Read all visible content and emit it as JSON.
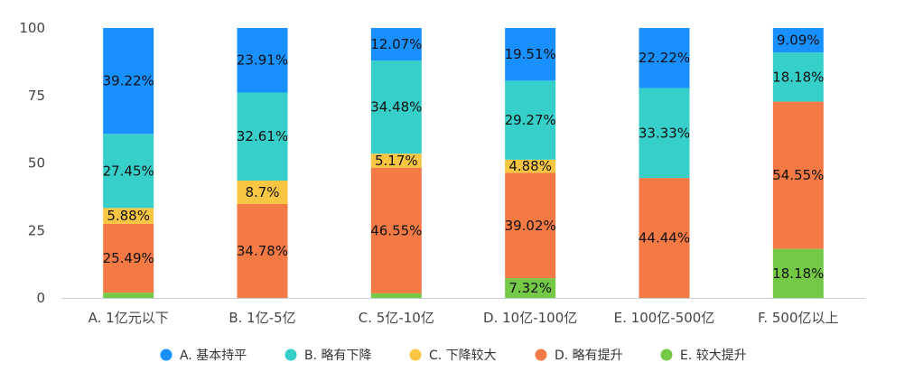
{
  "chart_data": {
    "type": "bar",
    "stacked": true,
    "orientation": "vertical",
    "categories": [
      "A. 1亿元以下",
      "B. 1亿-5亿",
      "C. 5亿-10亿",
      "D. 10亿-100亿",
      "E. 100亿-500亿",
      "F. 500亿以上"
    ],
    "series": [
      {
        "name": "E. 较大提升",
        "color": "#74C947",
        "values": [
          1.96,
          0,
          1.72,
          7.32,
          0,
          18.18
        ],
        "labels": [
          "1.96%",
          "",
          "1.72%",
          "7.32%",
          "",
          "18.18%"
        ]
      },
      {
        "name": "D. 略有提升",
        "color": "#F47A45",
        "values": [
          25.49,
          34.78,
          46.55,
          39.02,
          44.44,
          54.55
        ],
        "labels": [
          "25.49%",
          "34.78%",
          "46.55%",
          "39.02%",
          "44.44%",
          "54.55%"
        ]
      },
      {
        "name": "C. 下降较大",
        "color": "#F8C642",
        "values": [
          5.88,
          8.7,
          5.17,
          4.88,
          0,
          0
        ],
        "labels": [
          "5.88%",
          "8.7%",
          "5.17%",
          "4.88%",
          "",
          ""
        ]
      },
      {
        "name": "B. 略有下降",
        "color": "#36CFC9",
        "values": [
          27.45,
          32.61,
          34.48,
          29.27,
          33.33,
          18.18
        ],
        "labels": [
          "27.45%",
          "32.61%",
          "34.48%",
          "29.27%",
          "33.33%",
          "18.18%"
        ]
      },
      {
        "name": "A. 基本持平",
        "color": "#1890FF",
        "values": [
          39.22,
          23.91,
          12.07,
          19.51,
          22.22,
          9.09
        ],
        "labels": [
          "39.22%",
          "23.91%",
          "12.07%",
          "19.51%",
          "22.22%",
          "9.09%"
        ]
      }
    ],
    "legend_order": [
      "A. 基本持平",
      "B. 略有下降",
      "C. 下降较大",
      "D. 略有提升",
      "E. 较大提升"
    ],
    "ylim": [
      0,
      100
    ],
    "yticks": [
      0,
      25,
      50,
      75,
      100
    ],
    "title": "",
    "xlabel": "",
    "ylabel": "",
    "grid": false,
    "legend_position": "bottom"
  }
}
